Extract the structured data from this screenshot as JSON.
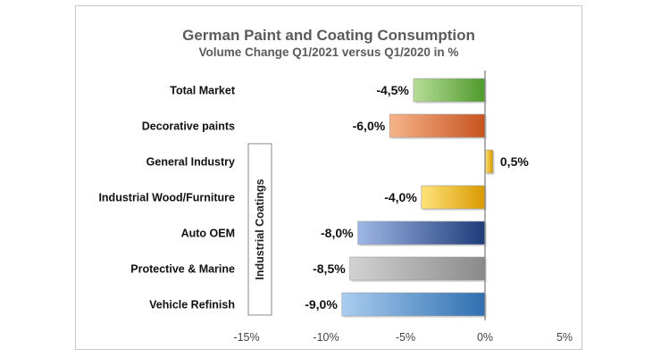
{
  "chart_data": {
    "type": "bar",
    "orientation": "horizontal",
    "title": "German Paint and Coating Consumption",
    "subtitle": "Volume Change Q1/2021 versus Q1/2020 in %",
    "categories": [
      "Total Market",
      "Decorative paints",
      "General Industry",
      "Industrial Wood/Furniture",
      "Auto OEM",
      "Protective & Marine",
      "Vehicle Refinish"
    ],
    "values": [
      -4.5,
      -6.0,
      0.5,
      -4.0,
      -8.0,
      -8.5,
      -9.0
    ],
    "data_labels": [
      "-4,5%",
      "-6,0%",
      "0,5%",
      "-4,0%",
      "-8,0%",
      "-8,5%",
      "-9,0%"
    ],
    "bar_colors": [
      [
        "#b7dd98",
        "#4e9a2c"
      ],
      [
        "#f6b48a",
        "#c7531f"
      ],
      [
        "#ffe27a",
        "#d99a00"
      ],
      [
        "#ffe27a",
        "#d99a00"
      ],
      [
        "#9fb7e6",
        "#1f3c7a"
      ],
      [
        "#d2d2d2",
        "#8a8a8a"
      ],
      [
        "#a9cdf0",
        "#2f6fb0"
      ]
    ],
    "xlim": [
      -15,
      5
    ],
    "x_ticks": [
      -15,
      -10,
      -5,
      0,
      5
    ],
    "x_tick_labels": [
      "-15%",
      "-10%",
      "-5%",
      "0%",
      "5%"
    ],
    "grid": false,
    "group_label": "Industrial Coatings"
  }
}
